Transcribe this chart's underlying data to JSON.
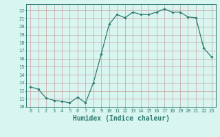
{
  "x": [
    0,
    1,
    2,
    3,
    4,
    5,
    6,
    7,
    8,
    9,
    10,
    11,
    12,
    13,
    14,
    15,
    16,
    17,
    18,
    19,
    20,
    21,
    22,
    23
  ],
  "y": [
    12.5,
    12.2,
    11.1,
    10.8,
    10.7,
    10.5,
    11.2,
    10.5,
    13.0,
    16.6,
    20.3,
    21.5,
    21.1,
    21.8,
    21.5,
    21.5,
    21.8,
    22.2,
    21.8,
    21.8,
    21.2,
    21.1,
    17.3,
    16.2
  ],
  "line_color": "#2d7a6e",
  "marker": "D",
  "marker_size": 1.8,
  "linewidth": 0.9,
  "xlabel": "Humidex (Indice chaleur)",
  "bg_color": "#d8f5f0",
  "grid_color": "#c8a0a0",
  "xlim": [
    -0.5,
    23.5
  ],
  "ylim": [
    10,
    22.8
  ],
  "yticks": [
    10,
    11,
    12,
    13,
    14,
    15,
    16,
    17,
    18,
    19,
    20,
    21,
    22
  ],
  "xticks": [
    0,
    1,
    2,
    3,
    4,
    5,
    6,
    7,
    8,
    9,
    10,
    11,
    12,
    13,
    14,
    15,
    16,
    17,
    18,
    19,
    20,
    21,
    22,
    23
  ],
  "tick_label_fontsize": 5.0,
  "xlabel_fontsize": 7.0
}
